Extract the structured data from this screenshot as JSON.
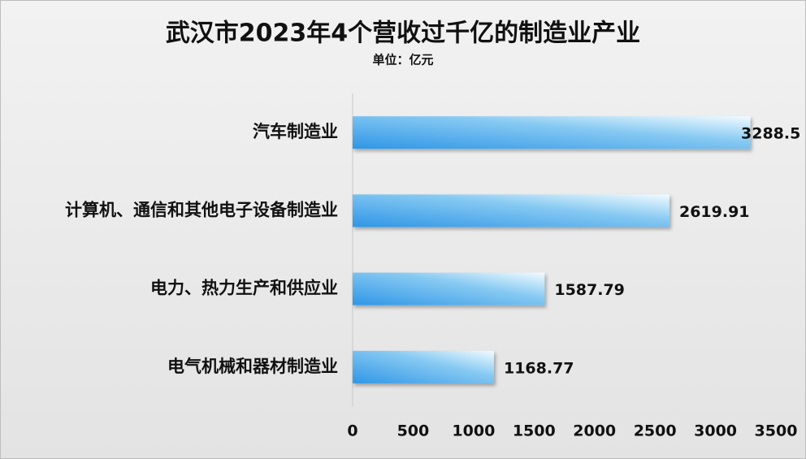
{
  "chart_data": {
    "type": "bar",
    "orientation": "horizontal",
    "title": "武汉市2023年4个营收过千亿的制造业产业",
    "subtitle": "单位：亿元",
    "categories": [
      "汽车制造业",
      "计算机、通信和其他电子设备制造业",
      "电力、热力生产和供应业",
      "电气机械和器材制造业"
    ],
    "values": [
      3288.5,
      2619.91,
      1587.79,
      1168.77
    ],
    "color": "#3a9ee8",
    "xlim": [
      0,
      3500
    ],
    "xticks": [
      0,
      500,
      1000,
      1500,
      2000,
      2500,
      3000,
      3500
    ],
    "grid": false
  }
}
